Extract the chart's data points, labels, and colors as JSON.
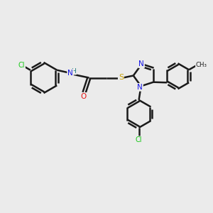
{
  "background_color": "#ebebeb",
  "bond_color": "#1a1a1a",
  "bond_width": 1.8,
  "double_sep": 0.055,
  "atom_colors": {
    "C": "#1a1a1a",
    "N": "#1414e6",
    "O": "#e61414",
    "S": "#c8a000",
    "Cl": "#14c814",
    "H": "#147878"
  },
  "figsize": [
    3.0,
    3.0
  ],
  "dpi": 100,
  "xlim": [
    0,
    10
  ],
  "ylim": [
    0,
    10
  ],
  "font_size_atom": 7.5,
  "font_size_cl": 7.0
}
